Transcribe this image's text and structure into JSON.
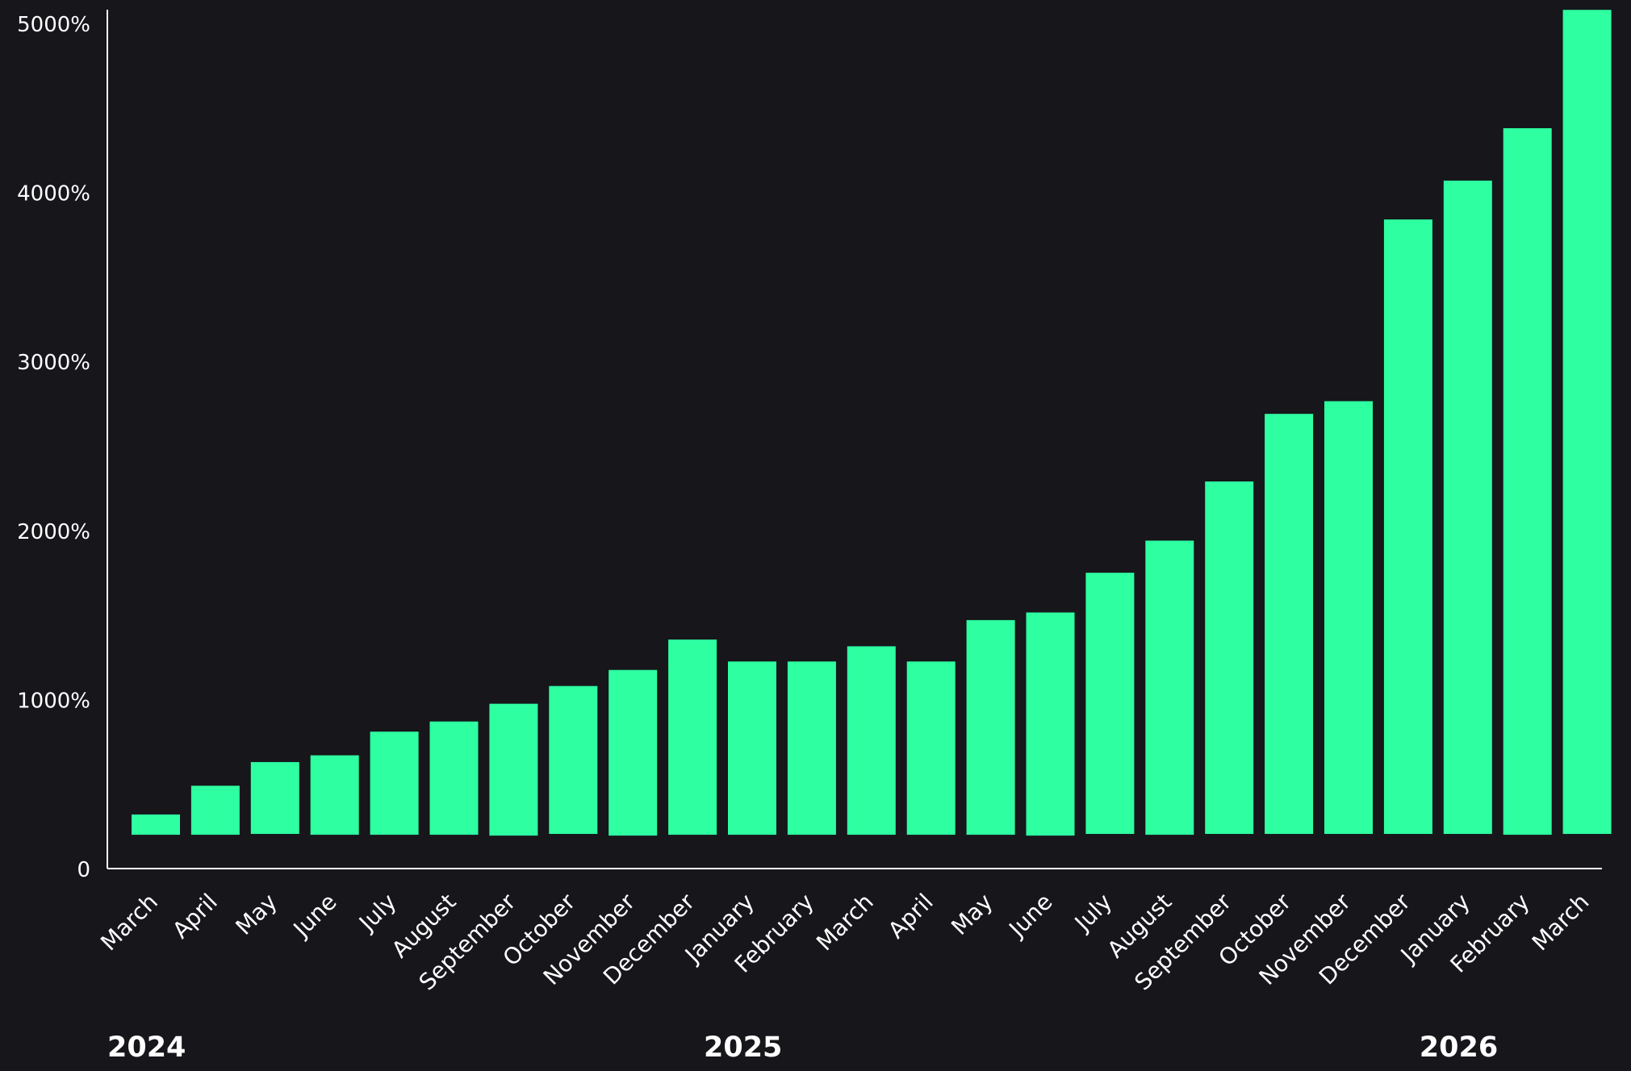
{
  "colors": {
    "background": "#16161b",
    "bar": "#2effa1",
    "axis": "#ffffff",
    "text": "#ffffff"
  },
  "chart_data": {
    "type": "bar",
    "title": "",
    "xlabel": "",
    "ylabel": "",
    "ylim": [
      0,
      5000
    ],
    "grid": false,
    "y_ticks": [
      "0",
      "1000%",
      "2000%",
      "3000%",
      "4000%",
      "5000%"
    ],
    "categories": [
      "March",
      "April",
      "May",
      "June",
      "July",
      "August",
      "September",
      "October",
      "November",
      "December",
      "January",
      "February",
      "March",
      "April",
      "May",
      "June",
      "July",
      "August",
      "September",
      "October",
      "November",
      "December",
      "January",
      "February",
      "March"
    ],
    "bars": [
      {
        "low": 200,
        "high": 320
      },
      {
        "low": 200,
        "high": 490
      },
      {
        "low": 205,
        "high": 630
      },
      {
        "low": 200,
        "high": 670
      },
      {
        "low": 200,
        "high": 810
      },
      {
        "low": 200,
        "high": 870
      },
      {
        "low": 195,
        "high": 975
      },
      {
        "low": 205,
        "high": 1080
      },
      {
        "low": 195,
        "high": 1175
      },
      {
        "low": 200,
        "high": 1355
      },
      {
        "low": 200,
        "high": 1225
      },
      {
        "low": 200,
        "high": 1225
      },
      {
        "low": 200,
        "high": 1315
      },
      {
        "low": 200,
        "high": 1225
      },
      {
        "low": 200,
        "high": 1470
      },
      {
        "low": 195,
        "high": 1515
      },
      {
        "low": 205,
        "high": 1750
      },
      {
        "low": 200,
        "high": 1940
      },
      {
        "low": 205,
        "high": 2290
      },
      {
        "low": 205,
        "high": 2690
      },
      {
        "low": 205,
        "high": 2765
      },
      {
        "low": 205,
        "high": 3840
      },
      {
        "low": 205,
        "high": 4070
      },
      {
        "low": 200,
        "high": 4380
      },
      {
        "low": 205,
        "high": 5080
      }
    ],
    "year_labels": [
      {
        "label": "2024",
        "index": 0
      },
      {
        "label": "2025",
        "index": 10
      },
      {
        "label": "2026",
        "index": 22
      }
    ]
  }
}
